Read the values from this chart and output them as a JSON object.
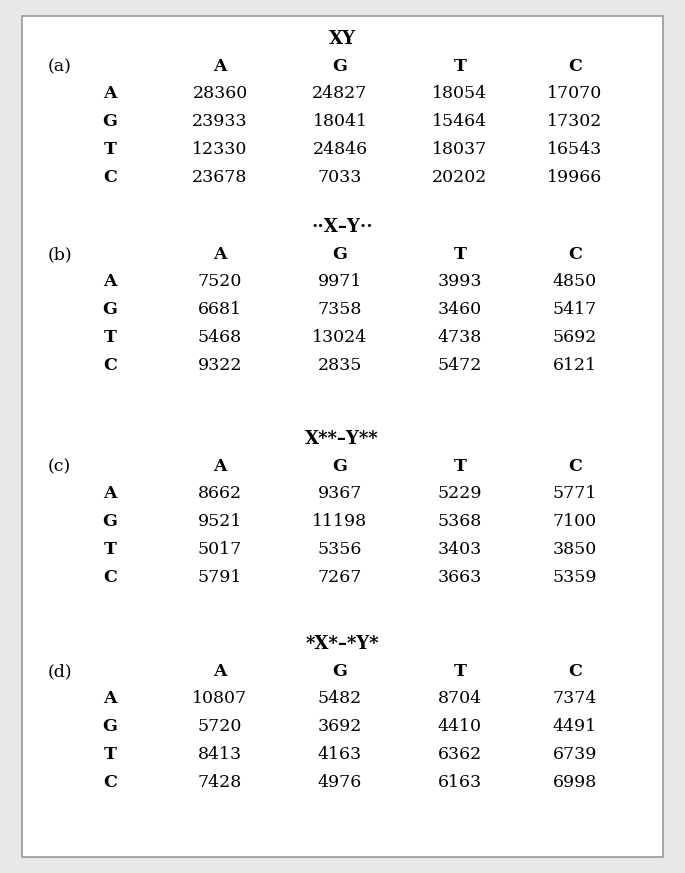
{
  "sections": [
    {
      "label": "(a)",
      "title": "XY",
      "col_headers": [
        "A",
        "G",
        "T",
        "C"
      ],
      "row_headers": [
        "A",
        "G",
        "T",
        "C"
      ],
      "data": [
        [
          28360,
          24827,
          18054,
          17070
        ],
        [
          23933,
          18041,
          15464,
          17302
        ],
        [
          12330,
          24846,
          18037,
          16543
        ],
        [
          23678,
          7033,
          20202,
          19966
        ]
      ]
    },
    {
      "label": "(b)",
      "title": "··X–Y··",
      "col_headers": [
        "A",
        "G",
        "T",
        "C"
      ],
      "row_headers": [
        "A",
        "G",
        "T",
        "C"
      ],
      "data": [
        [
          7520,
          9971,
          3993,
          4850
        ],
        [
          6681,
          7358,
          3460,
          5417
        ],
        [
          5468,
          13024,
          4738,
          5692
        ],
        [
          9322,
          2835,
          5472,
          6121
        ]
      ]
    },
    {
      "label": "(c)",
      "title": "X**–Y**",
      "col_headers": [
        "A",
        "G",
        "T",
        "C"
      ],
      "row_headers": [
        "A",
        "G",
        "T",
        "C"
      ],
      "data": [
        [
          8662,
          9367,
          5229,
          5771
        ],
        [
          9521,
          11198,
          5368,
          7100
        ],
        [
          5017,
          5356,
          3403,
          3850
        ],
        [
          5791,
          7267,
          3663,
          5359
        ]
      ]
    },
    {
      "label": "(d)",
      "title": "*X*–*Y*",
      "col_headers": [
        "A",
        "G",
        "T",
        "C"
      ],
      "row_headers": [
        "A",
        "G",
        "T",
        "C"
      ],
      "data": [
        [
          10807,
          5482,
          8704,
          7374
        ],
        [
          5720,
          3692,
          4410,
          4491
        ],
        [
          8413,
          4163,
          6362,
          6739
        ],
        [
          7428,
          4976,
          6163,
          6998
        ]
      ]
    }
  ],
  "bg_color": "#e8e8e8",
  "inner_bg": "#ffffff",
  "border_color": "#999999",
  "font_size": 12.5,
  "title_font_size": 13
}
